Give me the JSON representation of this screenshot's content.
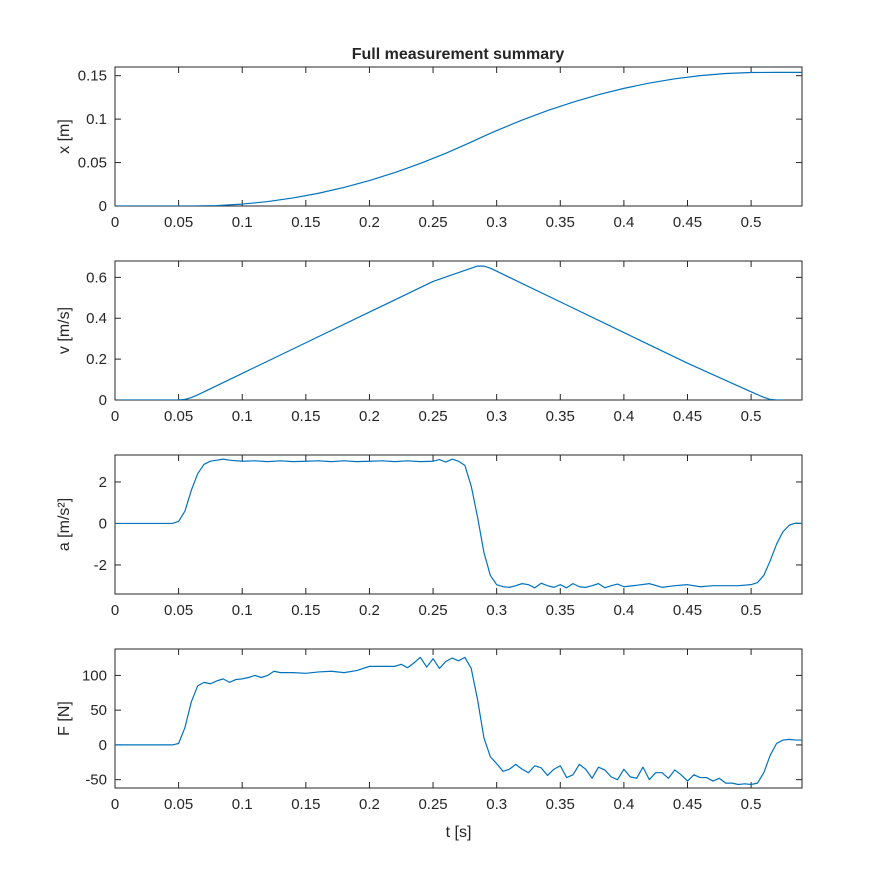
{
  "title": "Full measurement summary",
  "colors": {
    "series": "#0072BD",
    "axes": "#262626",
    "background": "#FFFFFF"
  },
  "chart_data": [
    {
      "type": "line",
      "title": "Full measurement summary",
      "xlabel": "",
      "ylabel": "x [m]",
      "xlim": [
        0,
        0.54
      ],
      "ylim": [
        0,
        0.16
      ],
      "xticks": [
        0,
        0.05,
        0.1,
        0.15,
        0.2,
        0.25,
        0.3,
        0.35,
        0.4,
        0.45,
        0.5
      ],
      "xtick_labels": [
        "0",
        "0.05",
        "0.1",
        "0.15",
        "0.2",
        "0.25",
        "0.3",
        "0.35",
        "0.4",
        "0.45",
        "0.5"
      ],
      "yticks": [
        0,
        0.05,
        0.1,
        0.15
      ],
      "ytick_labels": [
        "0",
        "0.05",
        "0.1",
        "0.15"
      ],
      "grid": false,
      "x": [
        0,
        0.04,
        0.06,
        0.08,
        0.1,
        0.12,
        0.14,
        0.16,
        0.18,
        0.2,
        0.22,
        0.24,
        0.26,
        0.28,
        0.29,
        0.3,
        0.32,
        0.34,
        0.36,
        0.38,
        0.4,
        0.42,
        0.44,
        0.46,
        0.48,
        0.5,
        0.52,
        0.54
      ],
      "y": [
        0,
        0,
        0,
        0.0005,
        0.0022,
        0.0051,
        0.0093,
        0.0147,
        0.0214,
        0.0293,
        0.0385,
        0.049,
        0.0607,
        0.0736,
        0.0804,
        0.0868,
        0.0989,
        0.1098,
        0.1195,
        0.1281,
        0.1354,
        0.1415,
        0.1464,
        0.1501,
        0.1525,
        0.1537,
        0.1538,
        0.1538
      ]
    },
    {
      "type": "line",
      "title": "",
      "xlabel": "",
      "ylabel": "v [m/s]",
      "xlim": [
        0,
        0.54
      ],
      "ylim": [
        0,
        0.68
      ],
      "xticks": [
        0,
        0.05,
        0.1,
        0.15,
        0.2,
        0.25,
        0.3,
        0.35,
        0.4,
        0.45,
        0.5
      ],
      "xtick_labels": [
        "0",
        "0.05",
        "0.1",
        "0.15",
        "0.2",
        "0.25",
        "0.3",
        "0.35",
        "0.4",
        "0.45",
        "0.5"
      ],
      "yticks": [
        0,
        0.2,
        0.4,
        0.6
      ],
      "ytick_labels": [
        "0",
        "0.2",
        "0.4",
        "0.6"
      ],
      "grid": false,
      "x": [
        0.003,
        0.05,
        0.055,
        0.06,
        0.065,
        0.07,
        0.08,
        0.1,
        0.15,
        0.2,
        0.25,
        0.28,
        0.285,
        0.29,
        0.295,
        0.3,
        0.35,
        0.4,
        0.45,
        0.5,
        0.51,
        0.515,
        0.52,
        0.525
      ],
      "y": [
        0,
        0,
        0.003,
        0.012,
        0.025,
        0.04,
        0.07,
        0.13,
        0.28,
        0.43,
        0.58,
        0.645,
        0.655,
        0.655,
        0.645,
        0.63,
        0.48,
        0.33,
        0.18,
        0.04,
        0.013,
        0.003,
        0,
        0
      ]
    },
    {
      "type": "line",
      "title": "",
      "xlabel": "",
      "ylabel": "a [m/s²]",
      "xlim": [
        0,
        0.54
      ],
      "ylim": [
        -3.4,
        3.3
      ],
      "xticks": [
        0,
        0.05,
        0.1,
        0.15,
        0.2,
        0.25,
        0.3,
        0.35,
        0.4,
        0.45,
        0.5
      ],
      "xtick_labels": [
        "0",
        "0.05",
        "0.1",
        "0.15",
        "0.2",
        "0.25",
        "0.3",
        "0.35",
        "0.4",
        "0.45",
        "0.5"
      ],
      "yticks": [
        -2,
        0,
        2
      ],
      "ytick_labels": [
        "-2",
        "0",
        "2"
      ],
      "grid": false,
      "x": [
        0,
        0.045,
        0.05,
        0.055,
        0.06,
        0.065,
        0.07,
        0.075,
        0.08,
        0.085,
        0.09,
        0.1,
        0.11,
        0.12,
        0.13,
        0.14,
        0.15,
        0.16,
        0.17,
        0.18,
        0.19,
        0.2,
        0.21,
        0.22,
        0.23,
        0.24,
        0.25,
        0.255,
        0.26,
        0.265,
        0.27,
        0.275,
        0.28,
        0.285,
        0.29,
        0.295,
        0.3,
        0.305,
        0.31,
        0.315,
        0.32,
        0.325,
        0.33,
        0.335,
        0.34,
        0.345,
        0.35,
        0.355,
        0.36,
        0.365,
        0.37,
        0.375,
        0.38,
        0.385,
        0.39,
        0.395,
        0.4,
        0.41,
        0.42,
        0.43,
        0.44,
        0.45,
        0.46,
        0.47,
        0.48,
        0.49,
        0.5,
        0.505,
        0.51,
        0.515,
        0.52,
        0.525,
        0.53,
        0.535,
        0.54
      ],
      "y": [
        0,
        0,
        0.1,
        0.6,
        1.6,
        2.4,
        2.85,
        3.0,
        3.05,
        3.1,
        3.05,
        3.0,
        3.02,
        2.98,
        3.02,
        2.98,
        3.0,
        3.02,
        2.98,
        3.02,
        2.98,
        3.0,
        3.02,
        2.98,
        3.02,
        2.98,
        3.0,
        3.08,
        2.96,
        3.1,
        3.0,
        2.8,
        1.8,
        0.3,
        -1.4,
        -2.5,
        -2.95,
        -3.05,
        -3.08,
        -3.0,
        -2.9,
        -2.95,
        -3.1,
        -2.88,
        -3.0,
        -3.08,
        -2.95,
        -3.1,
        -2.9,
        -3.05,
        -3.08,
        -3.0,
        -2.9,
        -3.1,
        -3.0,
        -2.92,
        -3.05,
        -2.98,
        -2.9,
        -3.08,
        -3.0,
        -2.95,
        -3.05,
        -3.0,
        -3.0,
        -3.0,
        -2.95,
        -2.85,
        -2.5,
        -1.8,
        -1.0,
        -0.4,
        -0.08,
        0.02,
        0
      ]
    },
    {
      "type": "line",
      "title": "",
      "xlabel": "t [s]",
      "ylabel": "F [N]",
      "xlim": [
        0,
        0.54
      ],
      "ylim": [
        -62,
        138
      ],
      "xticks": [
        0,
        0.05,
        0.1,
        0.15,
        0.2,
        0.25,
        0.3,
        0.35,
        0.4,
        0.45,
        0.5
      ],
      "xtick_labels": [
        "0",
        "0.05",
        "0.1",
        "0.15",
        "0.2",
        "0.25",
        "0.3",
        "0.35",
        "0.4",
        "0.45",
        "0.5"
      ],
      "yticks": [
        -50,
        0,
        50,
        100
      ],
      "ytick_labels": [
        "-50",
        "0",
        "50",
        "100"
      ],
      "grid": false,
      "x": [
        0,
        0.045,
        0.05,
        0.055,
        0.06,
        0.065,
        0.07,
        0.075,
        0.08,
        0.085,
        0.09,
        0.095,
        0.1,
        0.105,
        0.11,
        0.115,
        0.12,
        0.125,
        0.13,
        0.14,
        0.15,
        0.16,
        0.17,
        0.18,
        0.19,
        0.2,
        0.21,
        0.22,
        0.225,
        0.23,
        0.235,
        0.24,
        0.245,
        0.25,
        0.255,
        0.26,
        0.265,
        0.27,
        0.275,
        0.28,
        0.285,
        0.29,
        0.295,
        0.3,
        0.305,
        0.31,
        0.315,
        0.32,
        0.325,
        0.33,
        0.335,
        0.34,
        0.345,
        0.35,
        0.355,
        0.36,
        0.365,
        0.37,
        0.375,
        0.38,
        0.385,
        0.39,
        0.395,
        0.4,
        0.405,
        0.41,
        0.415,
        0.42,
        0.425,
        0.43,
        0.435,
        0.44,
        0.445,
        0.45,
        0.455,
        0.46,
        0.465,
        0.47,
        0.475,
        0.48,
        0.485,
        0.49,
        0.495,
        0.5,
        0.505,
        0.51,
        0.515,
        0.52,
        0.525,
        0.53,
        0.535,
        0.54
      ],
      "y": [
        0,
        0,
        2,
        25,
        62,
        85,
        90,
        88,
        92,
        95,
        90,
        94,
        95,
        97,
        100,
        97,
        100,
        106,
        104,
        104,
        103,
        105,
        106,
        104,
        107,
        113,
        113,
        113,
        116,
        111,
        118,
        126,
        112,
        124,
        110,
        120,
        125,
        121,
        126,
        110,
        65,
        10,
        -17,
        -27,
        -38,
        -35,
        -28,
        -35,
        -40,
        -30,
        -33,
        -44,
        -35,
        -30,
        -47,
        -43,
        -28,
        -35,
        -48,
        -32,
        -36,
        -46,
        -50,
        -35,
        -46,
        -48,
        -32,
        -50,
        -40,
        -40,
        -48,
        -36,
        -43,
        -52,
        -43,
        -47,
        -47,
        -52,
        -48,
        -55,
        -55,
        -57,
        -56,
        -57,
        -55,
        -40,
        -15,
        2,
        7,
        8,
        7,
        7
      ]
    }
  ]
}
